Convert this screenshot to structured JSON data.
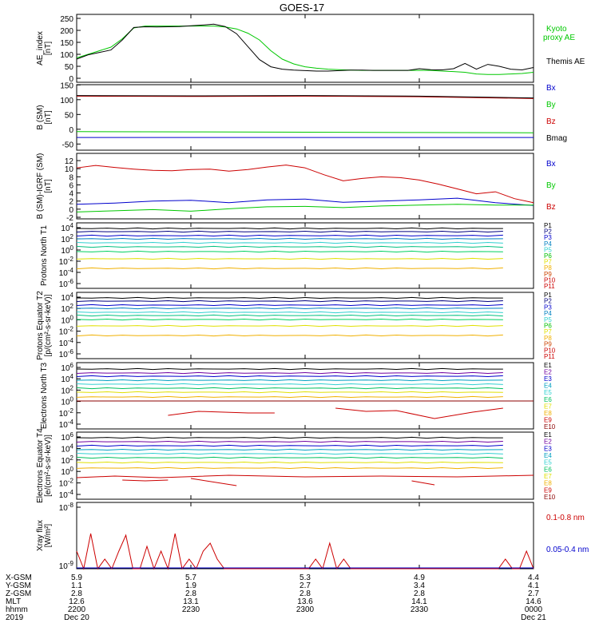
{
  "title": "GOES-17",
  "colors": {
    "black": "#000000",
    "green": "#00c800",
    "blue": "#0000cc",
    "red": "#cc0000",
    "darkred": "#8b0000",
    "cyan": "#00c0c0",
    "teal": "#00a0a0",
    "aqua": "#30d0d0",
    "lime": "#00d060",
    "yellow": "#e0e000",
    "orange": "#f0b000",
    "purple": "#7000a0",
    "navy": "#000080"
  },
  "chart_data": [
    {
      "type": "line",
      "ylabel": "AE_index [nT]",
      "ylim": [
        0,
        250
      ],
      "yticks": [
        "250",
        "200",
        "150",
        "100",
        "50",
        "0"
      ],
      "series": [
        {
          "name": "Kyoto proxy AE",
          "color": "#00c800",
          "x": [
            0,
            3,
            6,
            9,
            12,
            15,
            18,
            21,
            24,
            27,
            30,
            33,
            36,
            39,
            42,
            45,
            48,
            51,
            54,
            57,
            60,
            63,
            66,
            69,
            72,
            75,
            78,
            81,
            84,
            87,
            90,
            93,
            96,
            99,
            102,
            105,
            108,
            111,
            114,
            117,
            120
          ],
          "y": [
            85,
            100,
            115,
            130,
            165,
            210,
            218,
            218,
            218,
            218,
            218,
            218,
            218,
            214,
            206,
            188,
            160,
            115,
            80,
            60,
            48,
            42,
            38,
            36,
            34,
            33,
            33,
            33,
            33,
            33,
            33,
            33,
            30,
            28,
            25,
            18,
            16,
            16,
            18,
            20,
            25
          ]
        },
        {
          "name": "Themis AE",
          "color": "#000000",
          "x": [
            0,
            3,
            6,
            9,
            12,
            15,
            18,
            21,
            24,
            27,
            30,
            33,
            36,
            39,
            42,
            45,
            48,
            51,
            54,
            57,
            60,
            63,
            66,
            69,
            72,
            75,
            78,
            81,
            84,
            87,
            90,
            93,
            96,
            99,
            102,
            105,
            108,
            111,
            114,
            117,
            120
          ],
          "y": [
            80,
            98,
            108,
            118,
            160,
            212,
            215,
            214,
            215,
            216,
            219,
            222,
            226,
            216,
            186,
            132,
            78,
            48,
            38,
            34,
            32,
            30,
            30,
            32,
            34,
            34,
            33,
            33,
            33,
            33,
            40,
            36,
            35,
            40,
            62,
            38,
            58,
            50,
            38,
            35,
            45
          ]
        }
      ],
      "legend": [
        "Kyoto",
        "proxy AE",
        "Themis AE"
      ]
    },
    {
      "type": "line",
      "ylabel": "B (SM) [nT]",
      "ylim": [
        -60,
        140
      ],
      "yticks": [
        "150",
        "100",
        "50",
        "0",
        "-50"
      ],
      "series": [
        {
          "name": "Bx",
          "color": "#0000cc",
          "x": [
            0,
            120
          ],
          "y": [
            -28,
            -28
          ]
        },
        {
          "name": "By",
          "color": "#00c800",
          "x": [
            0,
            30,
            60,
            90,
            120
          ],
          "y": [
            -8,
            -9,
            -10,
            -11,
            -12
          ]
        },
        {
          "name": "Bz",
          "color": "#cc0000",
          "x": [
            0,
            30,
            60,
            90,
            110,
            120
          ],
          "y": [
            112,
            111,
            112,
            110,
            106,
            104
          ]
        },
        {
          "name": "Bmag",
          "color": "#000000",
          "x": [
            0,
            30,
            60,
            90,
            110,
            120
          ],
          "y": [
            114,
            113,
            114,
            112,
            108,
            106
          ]
        }
      ],
      "legend": [
        "Bx",
        "By",
        "Bz",
        "Bmag"
      ]
    },
    {
      "type": "line",
      "ylabel": "B (SM)-IGRF (SM) [nT]",
      "ylim": [
        -2,
        13
      ],
      "yticks": [
        "12",
        "10",
        "8",
        "6",
        "4",
        "2",
        "0",
        "-2"
      ],
      "series": [
        {
          "name": "Bx",
          "color": "#0000cc",
          "x": [
            0,
            10,
            20,
            30,
            40,
            50,
            60,
            70,
            80,
            90,
            100,
            110,
            120
          ],
          "y": [
            1.2,
            1.5,
            2.0,
            2.2,
            1.6,
            2.3,
            2.5,
            1.7,
            2.0,
            2.3,
            2.7,
            1.6,
            0.9
          ]
        },
        {
          "name": "By",
          "color": "#00c800",
          "x": [
            0,
            10,
            20,
            30,
            40,
            50,
            60,
            70,
            80,
            90,
            100,
            110,
            120
          ],
          "y": [
            -0.7,
            -0.4,
            -0.1,
            -0.5,
            0.1,
            0.6,
            0.7,
            0.4,
            0.8,
            1.0,
            1.2,
            1.0,
            1.0
          ]
        },
        {
          "name": "Bz",
          "color": "#cc0000",
          "x": [
            0,
            5,
            10,
            15,
            20,
            25,
            30,
            35,
            40,
            45,
            50,
            55,
            60,
            65,
            70,
            75,
            80,
            85,
            90,
            95,
            100,
            105,
            110,
            115,
            120
          ],
          "y": [
            10.2,
            10.8,
            10.3,
            9.9,
            9.6,
            9.5,
            9.8,
            9.9,
            9.4,
            9.8,
            10.4,
            10.9,
            10.2,
            8.5,
            7.0,
            7.6,
            8.0,
            7.8,
            7.2,
            6.2,
            5.0,
            3.8,
            4.3,
            2.6,
            1.6
          ]
        }
      ],
      "legend": [
        "Bx",
        "By",
        "Bz"
      ]
    },
    {
      "type": "line",
      "ylabel": "Protons North T1",
      "ylim": [
        "1e-6",
        "1e4"
      ],
      "yticks": [
        "10^4",
        "10^2",
        "10^0",
        "10^-2",
        "10^-4",
        "10^-6"
      ],
      "channels": [
        "P1",
        "P2",
        "P3",
        "P4",
        "P5",
        "P6",
        "P7",
        "P8",
        "P9",
        "P10",
        "P11"
      ]
    },
    {
      "type": "line",
      "ylabel": "Protons Equator T2 [p/(cm²-s-sr-keV)]",
      "ylim": [
        "1e-6",
        "1e4"
      ],
      "yticks": [
        "10^4",
        "10^2",
        "10^0",
        "10^-2",
        "10^-4",
        "10^-6"
      ],
      "channels": [
        "P1",
        "P2",
        "P3",
        "P4",
        "P5",
        "P6",
        "P7",
        "P8",
        "P9",
        "P10",
        "P11"
      ]
    },
    {
      "type": "line",
      "ylabel": "Electrons North T3",
      "ylim": [
        "1e-4",
        "1e6"
      ],
      "yticks": [
        "10^6",
        "10^4",
        "10^2",
        "10^0",
        "10^-2",
        "10^-4"
      ],
      "channels": [
        "E1",
        "E2",
        "E3",
        "E4",
        "E5",
        "E6",
        "E7",
        "E8",
        "E9",
        "E10"
      ]
    },
    {
      "type": "line",
      "ylabel": "Electrons Equator T4 [e/(cm²-s-sr-keV)]",
      "ylim": [
        "1e-4",
        "1e6"
      ],
      "yticks": [
        "10^6",
        "10^4",
        "10^2",
        "10^0",
        "10^-2",
        "10^-4"
      ],
      "channels": [
        "E1",
        "E2",
        "E3",
        "E4",
        "E5",
        "E6",
        "E7",
        "E8",
        "E9",
        "E10"
      ]
    },
    {
      "type": "line",
      "ylabel": "Xray flux [W/m²]",
      "yticks": [
        "10^-8",
        "10^-9"
      ],
      "series": [
        {
          "name": "0.1-0.8 nm",
          "color": "#cc0000"
        },
        {
          "name": "0.05-0.4 nm",
          "color": "#0000cc"
        }
      ],
      "legend": [
        "0.1-0.8 nm",
        "0.05-0.4 nm"
      ]
    }
  ],
  "xaxis": {
    "row_labels": [
      "X-GSM",
      "Y-GSM",
      "Z-GSM",
      "MLT",
      "hhmm",
      "2019"
    ],
    "ticks": [
      {
        "xgsm": "5.9",
        "ygsm": "1.1",
        "zgsm": "2.8",
        "mlt": "12.6",
        "hhmm": "2200",
        "date": "Dec 20"
      },
      {
        "xgsm": "5.7",
        "ygsm": "1.9",
        "zgsm": "2.8",
        "mlt": "13.1",
        "hhmm": "2230",
        "date": ""
      },
      {
        "xgsm": "5.3",
        "ygsm": "2.7",
        "zgsm": "2.8",
        "mlt": "13.6",
        "hhmm": "2300",
        "date": ""
      },
      {
        "xgsm": "4.9",
        "ygsm": "3.4",
        "zgsm": "2.8",
        "mlt": "14.1",
        "hhmm": "2330",
        "date": ""
      },
      {
        "xgsm": "4.4",
        "ygsm": "4.1",
        "zgsm": "2.7",
        "mlt": "14.6",
        "hhmm": "0000",
        "date": "Dec 21"
      }
    ]
  }
}
